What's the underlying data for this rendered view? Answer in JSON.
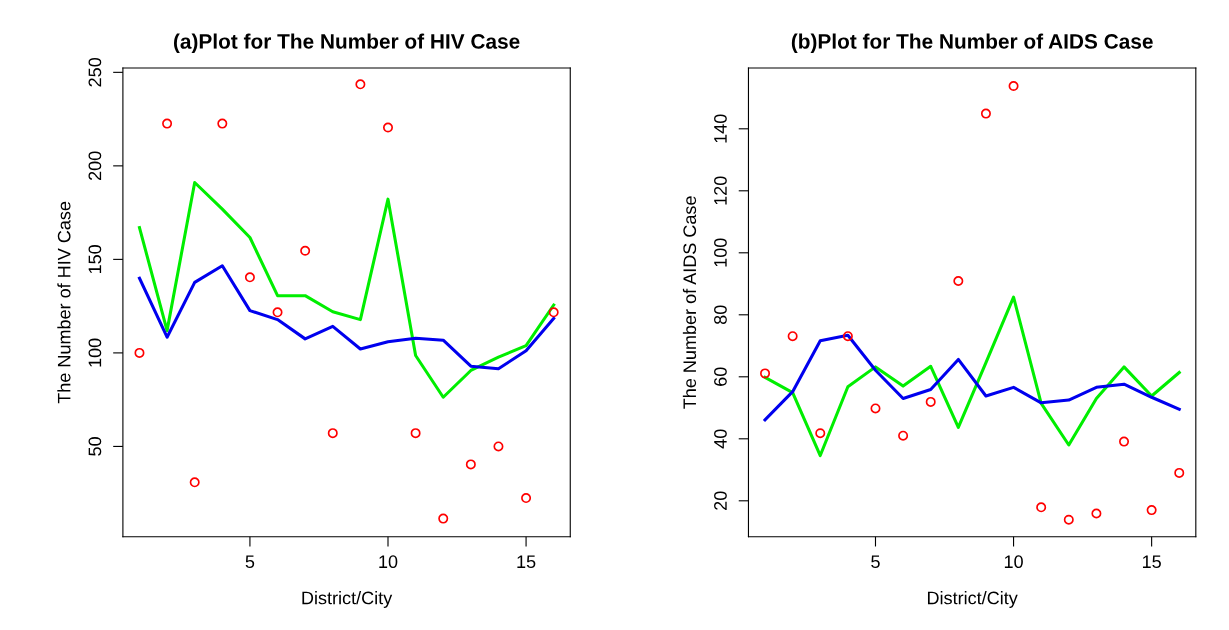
{
  "chart_data": [
    {
      "type": "line",
      "title": "(a)Plot for The Number of HIV Case",
      "xlabel": "District/City",
      "ylabel": "The Number of HIV Case",
      "x": [
        1,
        2,
        3,
        4,
        5,
        6,
        7,
        8,
        9,
        10,
        11,
        12,
        13,
        14,
        15,
        16
      ],
      "xlim": [
        0.4,
        16.6
      ],
      "xticks": [
        5,
        10,
        15
      ],
      "ylim": [
        1.7,
        252.3
      ],
      "yticks": [
        50,
        100,
        150,
        200,
        250
      ],
      "grid": false,
      "legend": false,
      "series": [
        {
          "type": "scatter",
          "marker": "circle",
          "color": "#ff0000",
          "values": [
            100,
            222.6,
            30.8,
            222.6,
            140.4,
            121.7,
            154.6,
            57.1,
            243.6,
            220.5,
            57.1,
            11.4,
            40.4,
            50,
            22.4,
            121.7
          ]
        },
        {
          "marker": "none",
          "color": "#00ee00",
          "values": [
            167,
            111.9,
            191.1,
            176.9,
            161.7,
            130.6,
            130.6,
            122,
            117.8,
            182.2,
            98.6,
            76.3,
            90.6,
            97.7,
            103.9,
            125.6
          ]
        },
        {
          "marker": "none",
          "color": "#0000ee",
          "values": [
            139.9,
            108.4,
            137.7,
            146.6,
            122.6,
            117.8,
            107.5,
            114.2,
            102.1,
            106,
            107.8,
            106.8,
            92.9,
            91.5,
            101.2,
            118.5
          ]
        }
      ]
    },
    {
      "type": "line",
      "title": "(b)Plot for The Number of AIDS Case",
      "xlabel": "District/City",
      "ylabel": "The Number of AIDS Case",
      "x": [
        1,
        2,
        3,
        4,
        5,
        6,
        7,
        8,
        9,
        10,
        11,
        12,
        13,
        14,
        15,
        16
      ],
      "xlim": [
        0.4,
        16.6
      ],
      "xticks": [
        5,
        10,
        15
      ],
      "ylim": [
        8.4,
        159.6
      ],
      "yticks": [
        20,
        40,
        60,
        80,
        100,
        120,
        140
      ],
      "grid": false,
      "legend": false,
      "series": [
        {
          "type": "scatter",
          "marker": "circle",
          "color": "#ff0000",
          "values": [
            61.1,
            73.1,
            41.8,
            73.1,
            49.8,
            41,
            51.9,
            90.9,
            144.9,
            153.8,
            17.9,
            13.9,
            15.9,
            39.1,
            17,
            29
          ]
        },
        {
          "marker": "none",
          "color": "#00ee00",
          "values": [
            59.8,
            54.9,
            34.6,
            56.8,
            63.2,
            57,
            63.4,
            43.7,
            64.6,
            85.7,
            51.4,
            38,
            53,
            63.2,
            53.8,
            61.4
          ]
        },
        {
          "marker": "none",
          "color": "#0000ee",
          "values": [
            46.1,
            55.2,
            71.6,
            73.4,
            62.1,
            53,
            55.9,
            65.6,
            53.8,
            56.6,
            51.6,
            52.5,
            56.6,
            57.6,
            53.4,
            49.5
          ]
        }
      ]
    }
  ]
}
